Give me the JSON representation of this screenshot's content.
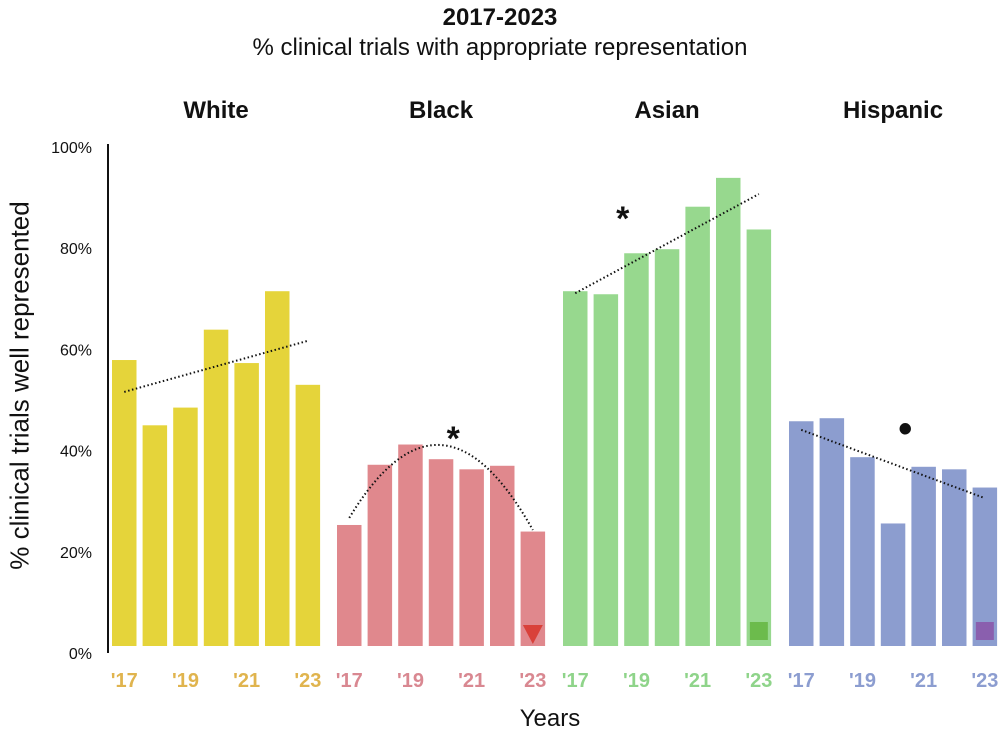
{
  "chart_data": {
    "type": "bar",
    "title": "2017-2023",
    "subtitle": "% clinical trials with appropriate representation",
    "xlabel": "Years",
    "ylabel": "% clinical trials well represented",
    "ylim": [
      0,
      100
    ],
    "yticks": [
      "0%",
      "20%",
      "40%",
      "60%",
      "80%",
      "100%"
    ],
    "grid": false,
    "years": [
      2017,
      2018,
      2019,
      2020,
      2021,
      2022,
      2023
    ],
    "xtick_labels": [
      "'17",
      "'19",
      "'21",
      "'23"
    ],
    "series": [
      {
        "name": "White",
        "color": "#e5d43a",
        "tick_color": "#e0b44e",
        "values": [
          57.9,
          45.0,
          48.5,
          63.9,
          57.3,
          71.5,
          53.0
        ],
        "trend": {
          "type": "linear",
          "start": 51.6,
          "end": 61.7
        },
        "significance": "",
        "marker": null
      },
      {
        "name": "Black",
        "color": "#e0888d",
        "tick_color": "#d98891",
        "values": [
          25.3,
          37.2,
          41.2,
          38.3,
          36.3,
          37.0,
          24.0
        ],
        "trend": {
          "type": "quadratic",
          "start": 26.7,
          "peak": 41.1,
          "end": 24.3
        },
        "significance": "*",
        "marker": {
          "shape": "triangle-down",
          "color": "#d9413a"
        }
      },
      {
        "name": "Asian",
        "color": "#97d88e",
        "tick_color": "#8fd48a",
        "values": [
          71.5,
          70.9,
          79.0,
          79.8,
          88.2,
          93.9,
          83.7
        ],
        "trend": {
          "type": "linear",
          "start": 71.1,
          "end": 90.7
        },
        "significance": "*",
        "marker": {
          "shape": "square",
          "color": "#6cbb4c"
        }
      },
      {
        "name": "Hispanic",
        "color": "#8c9dcf",
        "tick_color": "#8c9dd0",
        "values": [
          45.8,
          46.4,
          38.7,
          25.6,
          36.8,
          36.3,
          32.7
        ],
        "trend": {
          "type": "linear",
          "start": 44.1,
          "end": 30.6
        },
        "significance": "•",
        "marker": {
          "shape": "square",
          "color": "#8a5fae"
        }
      }
    ]
  }
}
